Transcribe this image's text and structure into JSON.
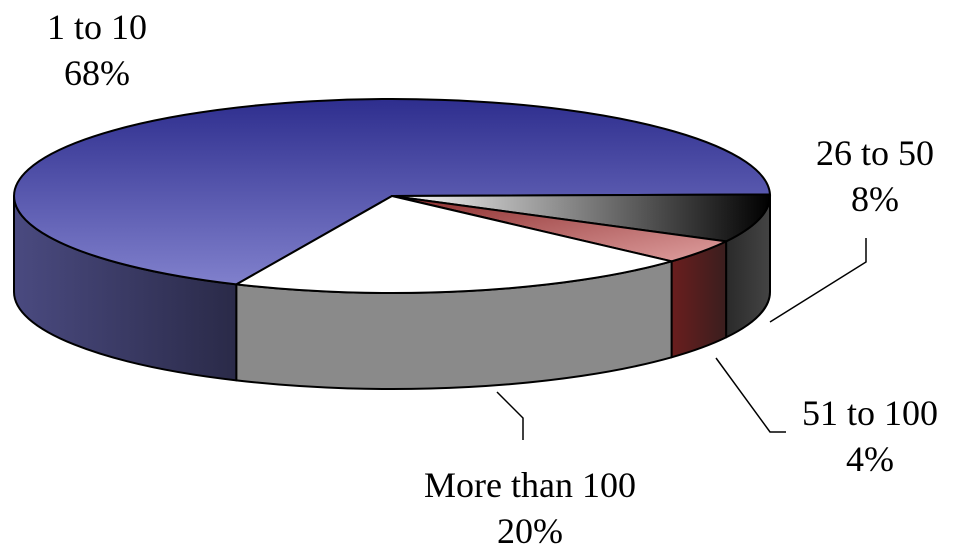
{
  "chart_data": {
    "type": "pie",
    "style": "3d",
    "title": "",
    "slices": [
      {
        "label": "1 to 10",
        "percent_label": "68%",
        "value": 68,
        "color": "#5a5ab8"
      },
      {
        "label": "26 to 50",
        "percent_label": "8%",
        "value": 8,
        "color": "#1a1a1a"
      },
      {
        "label": "51 to 100",
        "percent_label": "4%",
        "value": 4,
        "color": "#c07070"
      },
      {
        "label": "More than 100",
        "percent_label": "20%",
        "value": 20,
        "color": "#ffffff"
      }
    ]
  }
}
